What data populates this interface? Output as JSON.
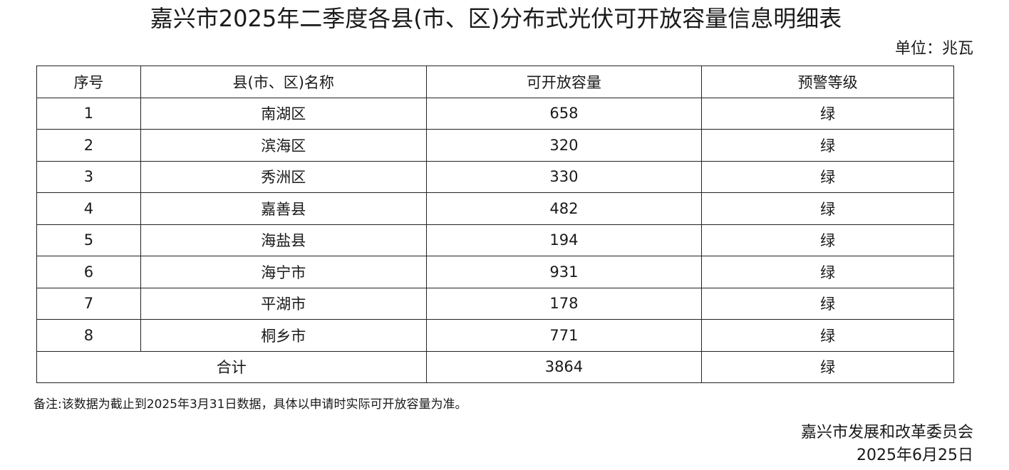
{
  "title": "嘉兴市2025年二季度各县(市、区)分布式光伏可开放容量信息明细表",
  "unit": "单位：兆瓦",
  "table": {
    "headers": [
      "序号",
      "县(市、区)名称",
      "可开放容量",
      "预警等级"
    ],
    "rows": [
      {
        "no": "1",
        "name": "南湖区",
        "capacity": "658",
        "level": "绿"
      },
      {
        "no": "2",
        "name": "滨海区",
        "capacity": "320",
        "level": "绿"
      },
      {
        "no": "3",
        "name": "秀洲区",
        "capacity": "330",
        "level": "绿"
      },
      {
        "no": "4",
        "name": "嘉善县",
        "capacity": "482",
        "level": "绿"
      },
      {
        "no": "5",
        "name": "海盐县",
        "capacity": "194",
        "level": "绿"
      },
      {
        "no": "6",
        "name": "海宁市",
        "capacity": "931",
        "level": "绿"
      },
      {
        "no": "7",
        "name": "平湖市",
        "capacity": "178",
        "level": "绿"
      },
      {
        "no": "8",
        "name": "桐乡市",
        "capacity": "771",
        "level": "绿"
      }
    ],
    "total": {
      "label": "合计",
      "capacity": "3864",
      "level": "绿"
    }
  },
  "note": "备注:该数据为截止到2025年3月31日数据，具体以申请时实际可开放容量为准。",
  "signature": {
    "org": "嘉兴市发展和改革委员会",
    "date": "2025年6月25日"
  }
}
